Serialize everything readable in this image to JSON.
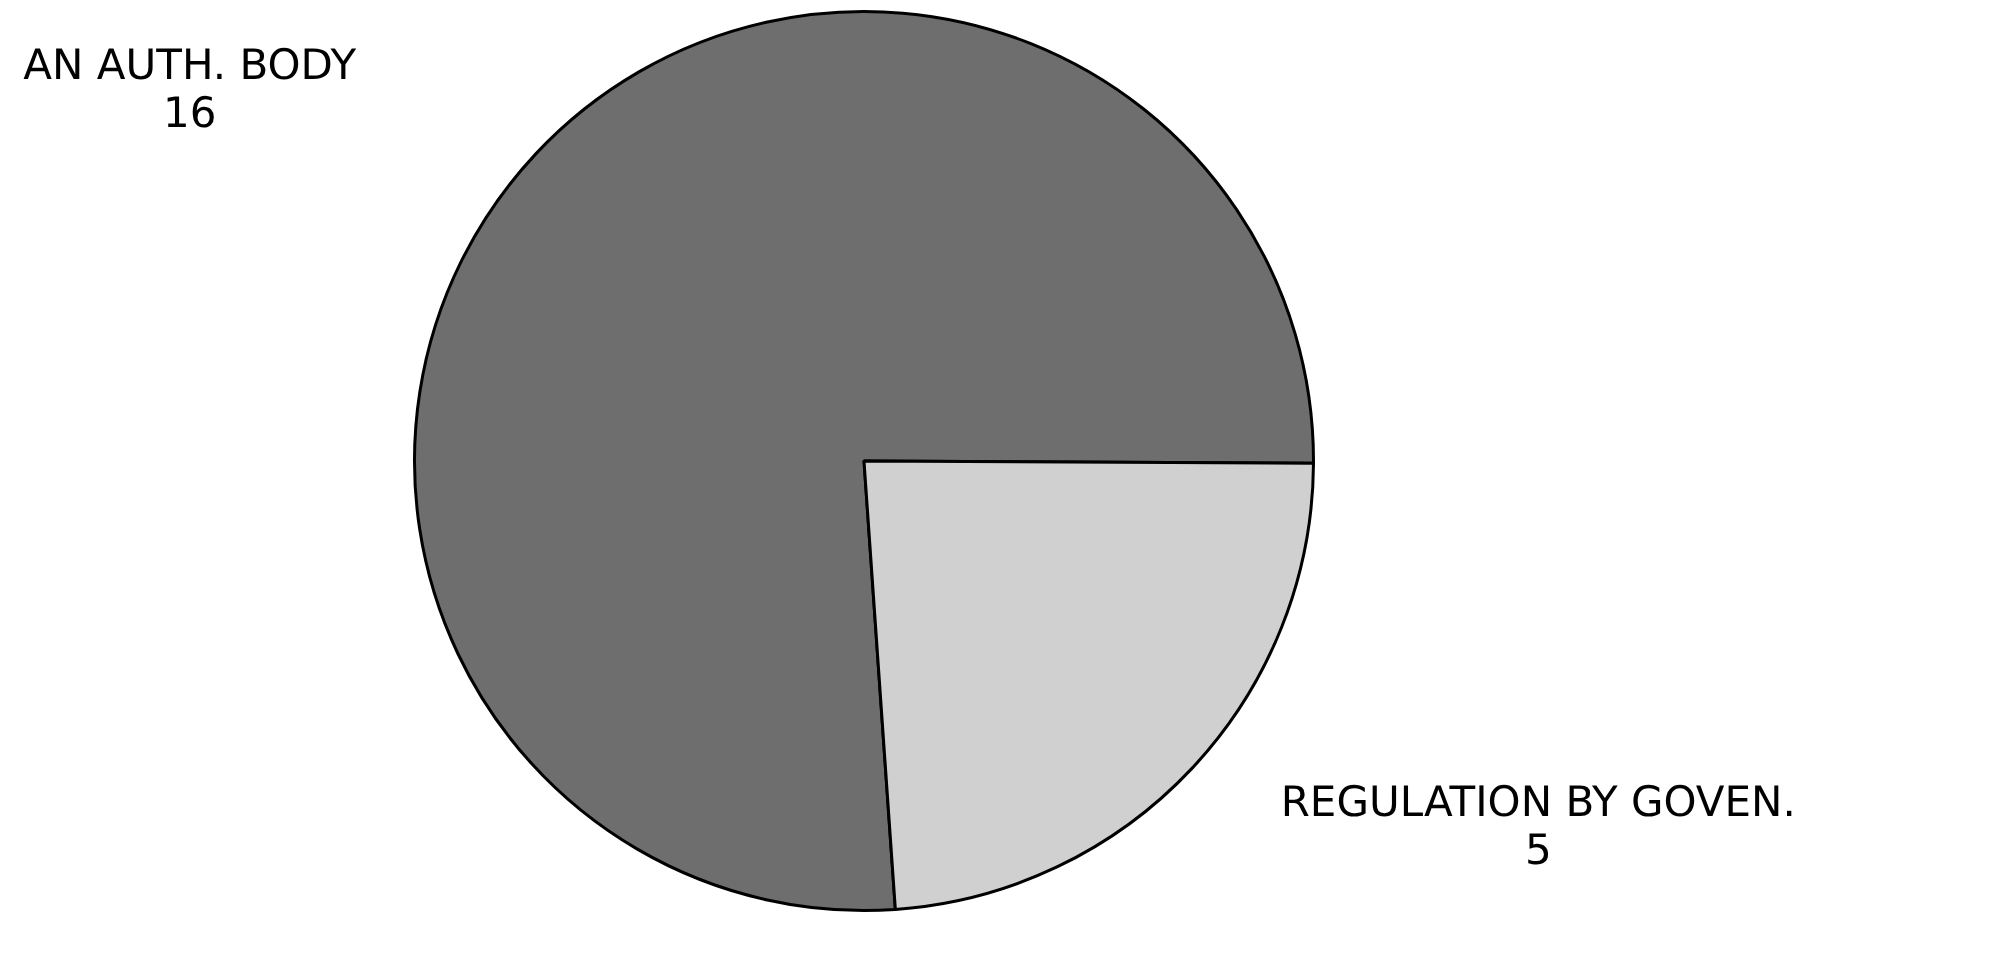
{
  "chart_data": {
    "type": "pie",
    "categories": [
      "AN AUTH. BODY",
      "REGULATION BY GOVEN."
    ],
    "values": [
      16,
      5
    ],
    "colors": [
      "#6e6e6e",
      "#d0d0d0"
    ],
    "data_labels": true
  }
}
